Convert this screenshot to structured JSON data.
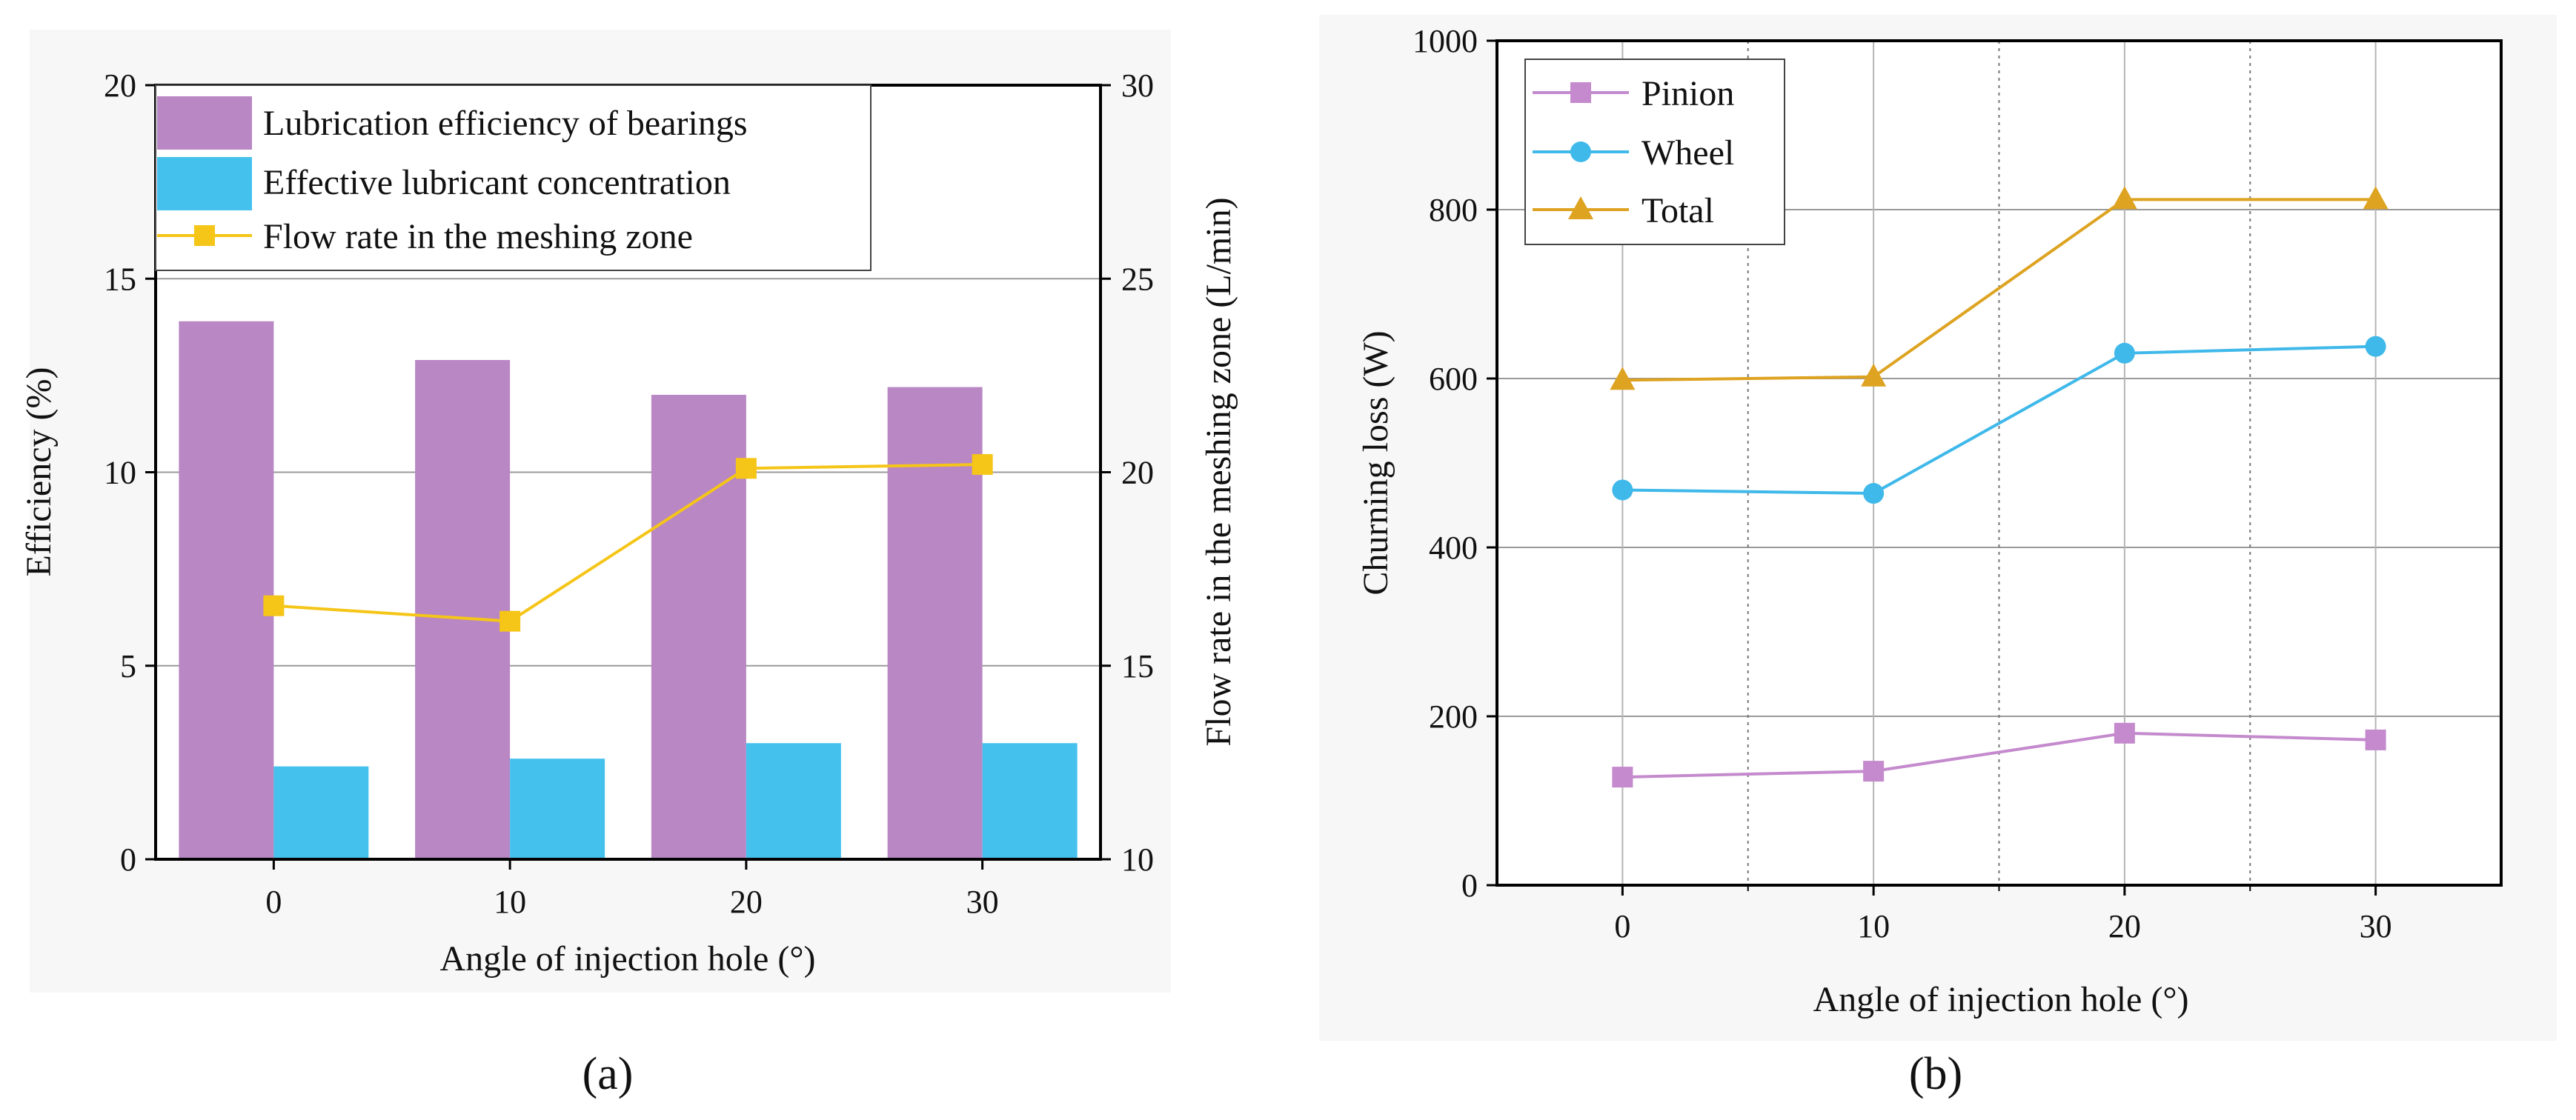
{
  "chart_data": [
    {
      "type": "bar",
      "panel_label": "(a)",
      "xlabel": "Angle of injection hole (°)",
      "ylabel": "Efficiency (%)",
      "y2label": "Flow rate in the meshing zone (L/min)",
      "categories": [
        "0",
        "10",
        "20",
        "30"
      ],
      "ylim": [
        0,
        20
      ],
      "yticks": [
        "0",
        "5",
        "10",
        "15",
        "20"
      ],
      "y2lim": [
        10,
        30
      ],
      "y2ticks": [
        "10",
        "15",
        "20",
        "25",
        "30"
      ],
      "grid": true,
      "legend_position": "top-left",
      "series": [
        {
          "name": "Lubrication efficiency of bearings",
          "kind": "bar",
          "axis": "left",
          "color": "#B887C4",
          "values": [
            13.9,
            12.9,
            12.0,
            12.2
          ]
        },
        {
          "name": "Effective lubricant concentration",
          "kind": "bar",
          "axis": "left",
          "color": "#45C1EE",
          "values": [
            2.4,
            2.6,
            3.0,
            3.0
          ]
        },
        {
          "name": "Flow rate in the meshing zone",
          "kind": "line",
          "axis": "right",
          "marker": "square",
          "color": "#F5C518",
          "values": [
            16.55,
            16.15,
            20.1,
            20.2
          ]
        }
      ]
    },
    {
      "type": "line",
      "panel_label": "(b)",
      "xlabel": "Angle of injection hole (°)",
      "ylabel": "Churning loss (W)",
      "x": [
        0,
        10,
        20,
        30
      ],
      "xticks": [
        "0",
        "10",
        "20",
        "30"
      ],
      "xlim": [
        -5,
        35
      ],
      "ylim": [
        0,
        1000
      ],
      "yticks": [
        "0",
        "200",
        "400",
        "600",
        "800",
        "1000"
      ],
      "grid": true,
      "legend_position": "top-left",
      "series": [
        {
          "name": "Pinion",
          "marker": "square",
          "color": "#C48ACD",
          "values": [
            128,
            135,
            180,
            172
          ]
        },
        {
          "name": "Wheel",
          "marker": "circle",
          "color": "#3FB8EA",
          "values": [
            468,
            464,
            630,
            638
          ]
        },
        {
          "name": "Total",
          "marker": "triangle",
          "color": "#DDA321",
          "values": [
            598,
            602,
            812,
            812
          ]
        }
      ]
    }
  ]
}
